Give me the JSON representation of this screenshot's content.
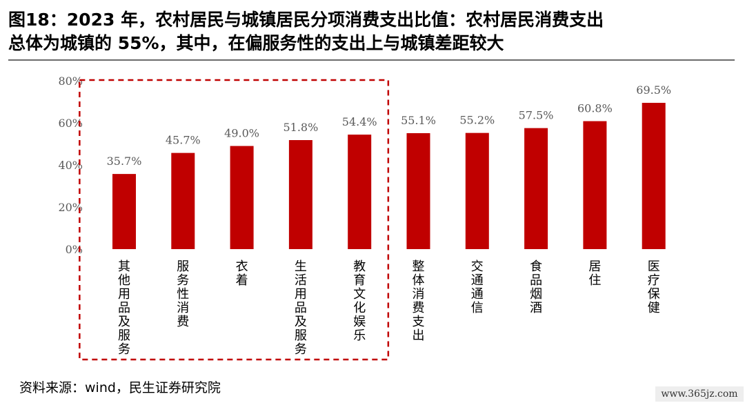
{
  "title_line1": "图18：2023 年，农村居民与城镇居民分项消费支出比值：农村居民消费支出",
  "title_line2": "总体为城镇的 55%，其中，在偏服务性的支出上与城镇差距较大",
  "source": "资料来源：wind，民生证券研究院",
  "watermark": "www.365jz.com",
  "colors": {
    "bar": "#c00000",
    "highlight_box": "#c00000",
    "text": "#000000",
    "axis_text": "#595959"
  },
  "chart_data": {
    "type": "bar",
    "categories": [
      "其他用品及服务",
      "服务性消费",
      "衣着",
      "生活用品及服务",
      "教育文化娱乐",
      "整体消费支出",
      "交通通信",
      "食品烟酒",
      "居住",
      "医疗保健"
    ],
    "values": [
      35.7,
      45.7,
      49.0,
      51.8,
      54.4,
      55.1,
      55.2,
      57.5,
      60.8,
      69.5
    ],
    "value_labels": [
      "35.7%",
      "45.7%",
      "49.0%",
      "51.8%",
      "54.4%",
      "55.1%",
      "55.2%",
      "57.5%",
      "60.8%",
      "69.5%"
    ],
    "yticks": [
      0,
      20,
      40,
      60,
      80
    ],
    "ytick_labels": [
      "0%",
      "20%",
      "40%",
      "60%",
      "80%"
    ],
    "ylim": [
      0,
      80
    ],
    "grid": false,
    "legend": "none",
    "highlighted_categories": [
      "其他用品及服务",
      "服务性消费",
      "衣着",
      "生活用品及服务",
      "教育文化娱乐"
    ]
  }
}
